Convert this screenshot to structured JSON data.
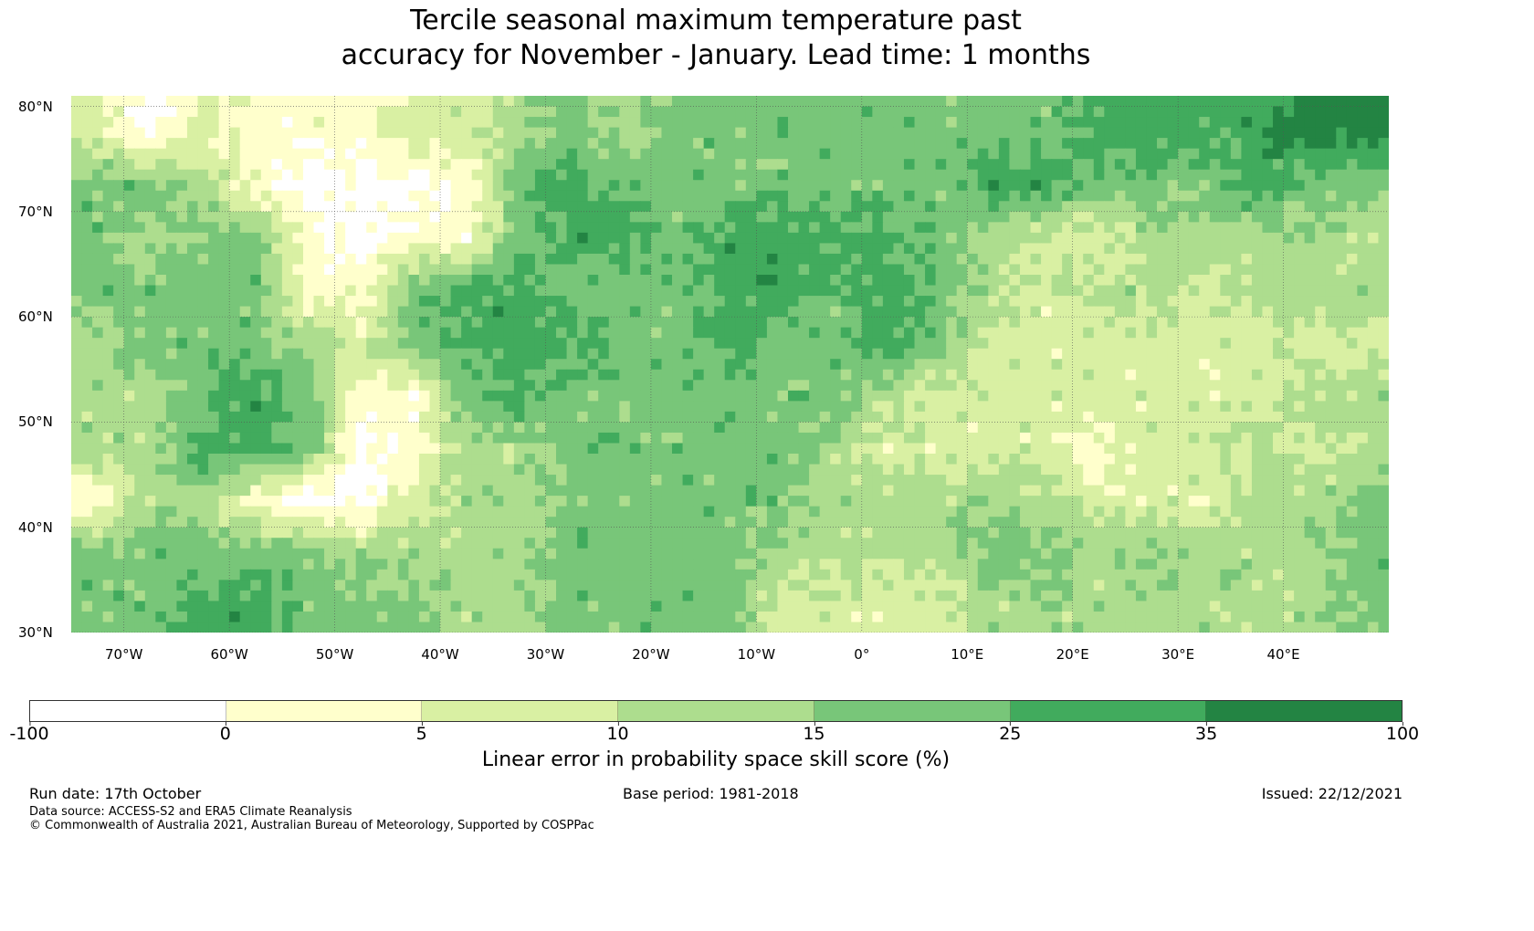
{
  "title_line1": "Tercile seasonal maximum temperature past",
  "title_line2": "accuracy for November - January. Lead time: 1 months",
  "map": {
    "lat_labels": [
      "80°N",
      "70°N",
      "60°N",
      "50°N",
      "40°N",
      "30°N"
    ],
    "lon_labels": [
      "70°W",
      "60°W",
      "50°W",
      "40°W",
      "30°W",
      "20°W",
      "10°W",
      "0°",
      "10°E",
      "20°E",
      "30°E",
      "40°E"
    ],
    "lat_range": [
      30,
      81
    ],
    "lon_range": [
      -75,
      50
    ],
    "grid_note_rows_lat_start": 80,
    "class_grid_5deg": [
      [
        2,
        0,
        2,
        1,
        1,
        1,
        2,
        2,
        3,
        4,
        3,
        4,
        4,
        4,
        4,
        4,
        4,
        4,
        4,
        5,
        5,
        5,
        5,
        6,
        6
      ],
      [
        4,
        4,
        3,
        1,
        0,
        0,
        0,
        1,
        4,
        5,
        4,
        4,
        4,
        4,
        4,
        4,
        4,
        5,
        5,
        4,
        4,
        4,
        5,
        4,
        4
      ],
      [
        4,
        3,
        4,
        4,
        1,
        0,
        1,
        1,
        4,
        5,
        5,
        4,
        5,
        5,
        5,
        5,
        4,
        3,
        2,
        2,
        3,
        3,
        3,
        3,
        3
      ],
      [
        4,
        4,
        4,
        4,
        1,
        1,
        4,
        5,
        5,
        4,
        4,
        4,
        5,
        5,
        4,
        5,
        4,
        3,
        2,
        3,
        3,
        2,
        3,
        3,
        3
      ],
      [
        3,
        4,
        4,
        4,
        3,
        2,
        4,
        5,
        5,
        5,
        4,
        4,
        5,
        4,
        4,
        5,
        4,
        2,
        2,
        2,
        2,
        2,
        2,
        2,
        2
      ],
      [
        3,
        3,
        4,
        5,
        4,
        1,
        1,
        4,
        5,
        4,
        4,
        4,
        4,
        4,
        4,
        3,
        2,
        2,
        2,
        2,
        2,
        2,
        2,
        3,
        3
      ],
      [
        3,
        3,
        5,
        5,
        4,
        0,
        1,
        3,
        3,
        4,
        4,
        4,
        4,
        4,
        3,
        2,
        2,
        2,
        2,
        1,
        2,
        2,
        3,
        2,
        3
      ],
      [
        1,
        3,
        3,
        1,
        0,
        0,
        2,
        3,
        3,
        4,
        4,
        4,
        4,
        4,
        3,
        3,
        3,
        3,
        3,
        2,
        2,
        2,
        3,
        3,
        4
      ],
      [
        4,
        4,
        4,
        4,
        4,
        3,
        3,
        3,
        3,
        4,
        4,
        4,
        4,
        3,
        3,
        3,
        3,
        4,
        4,
        3,
        4,
        3,
        3,
        3,
        4
      ],
      [
        4,
        4,
        5,
        5,
        4,
        4,
        4,
        3,
        3,
        4,
        4,
        4,
        4,
        2,
        2,
        2,
        2,
        3,
        3,
        3,
        3,
        3,
        3,
        3,
        4
      ]
    ]
  },
  "colorbar": {
    "colors": [
      "#ffffff",
      "#ffffcc",
      "#d9f0a3",
      "#addd8e",
      "#78c679",
      "#41ab5d",
      "#238443"
    ],
    "ticks": [
      "-100",
      "0",
      "5",
      "10",
      "15",
      "25",
      "35",
      "100"
    ],
    "label": "Linear error in probability space skill score (%)"
  },
  "footer": {
    "run_date": "Run date: 17th October",
    "base_period": "Base period: 1981-2018",
    "issued": "Issued: 22/12/2021",
    "data_source": "Data source: ACCESS-S2 and ERA5 Climate Reanalysis",
    "copyright": "© Commonwealth of Australia 2021, Australian Bureau of Meteorology, Supported by COSPPac"
  }
}
